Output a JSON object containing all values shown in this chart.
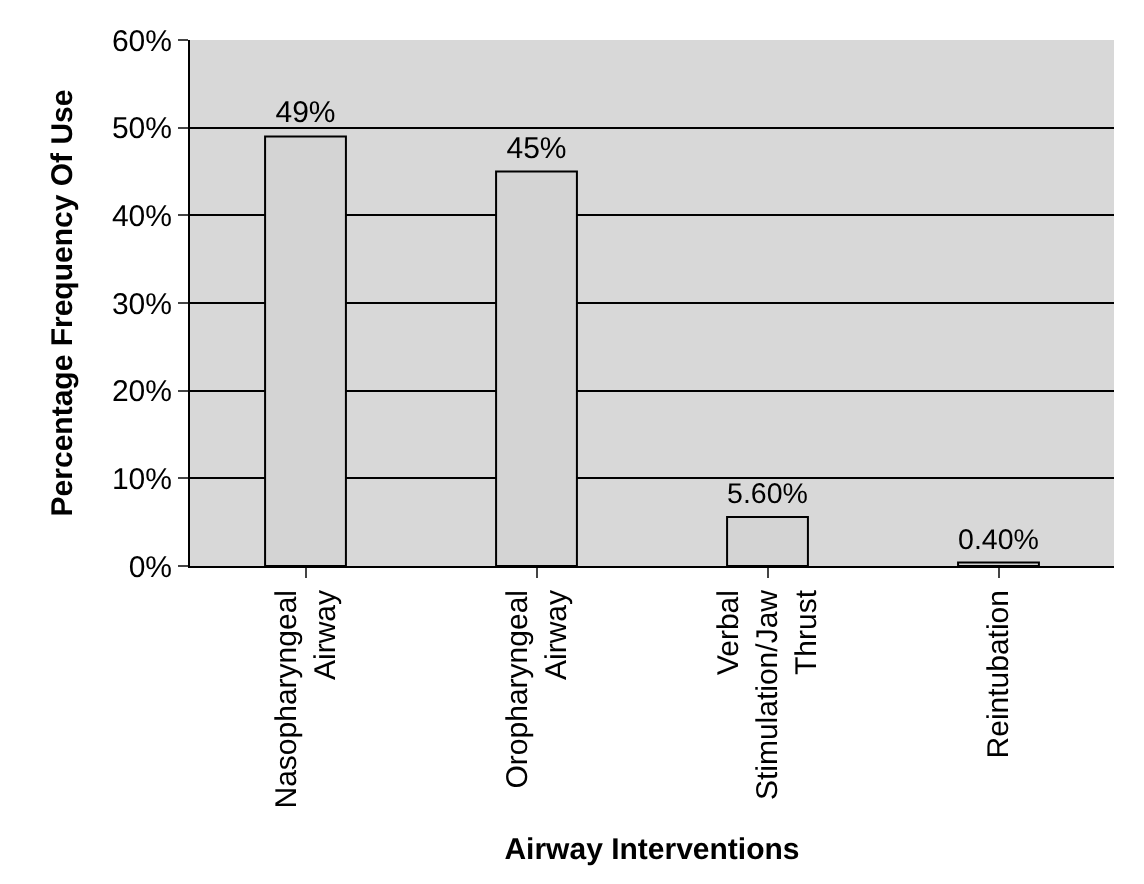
{
  "chart_data": {
    "type": "bar",
    "xlabel": "Airway Interventions",
    "ylabel": "Percentage Frequency Of Use",
    "categories": [
      "Nasopharyngeal Airway",
      "Oropharyngeal Airway",
      "Verbal Stimulation/Jaw Thrust",
      "Reintubation"
    ],
    "values": [
      49,
      45,
      5.6,
      0.4
    ],
    "value_labels": [
      "49%",
      "45%",
      "5.60%",
      "0.40%"
    ],
    "color": "#d4d4d4",
    "ylim": [
      0,
      60
    ],
    "yticks": [
      {
        "value": 0,
        "label": "0%"
      },
      {
        "value": 10,
        "label": "10%"
      },
      {
        "value": 20,
        "label": "20%"
      },
      {
        "value": 30,
        "label": "30%"
      },
      {
        "value": 40,
        "label": "40%"
      },
      {
        "value": 50,
        "label": "50%"
      },
      {
        "value": 60,
        "label": "60%"
      }
    ],
    "grid": "y",
    "legend": false
  }
}
